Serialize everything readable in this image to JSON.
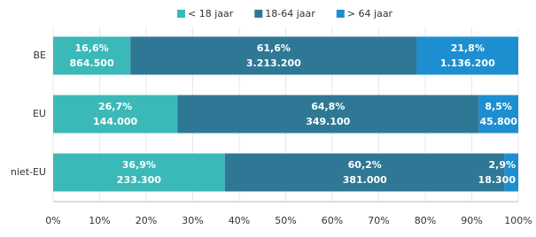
{
  "chart_data": {
    "type": "stacked-bar-horizontal",
    "categories": [
      "BE",
      "EU",
      "niet-EU"
    ],
    "series": [
      {
        "name": "< 18 jaar",
        "color": "#3bb9b9",
        "values": [
          16.6,
          26.7,
          36.9
        ],
        "value_labels": [
          "16,6%",
          "26,7%",
          "36,9%"
        ],
        "counts": [
          864500,
          144000,
          233300
        ],
        "count_labels": [
          "864.500",
          "144.000",
          "233.300"
        ]
      },
      {
        "name": "18-64 jaar",
        "color": "#2e7896",
        "values": [
          61.6,
          64.8,
          60.2
        ],
        "value_labels": [
          "61,6%",
          "64,8%",
          "60,2%"
        ],
        "counts": [
          3213200,
          349100,
          381000
        ],
        "count_labels": [
          "3.213.200",
          "349.100",
          "381.000"
        ]
      },
      {
        "name": "> 64 jaar",
        "color": "#1d8fd1",
        "values": [
          21.8,
          8.5,
          2.9
        ],
        "value_labels": [
          "21,8%",
          "8,5%",
          "2,9%"
        ],
        "counts": [
          1136200,
          45800,
          18300
        ],
        "count_labels": [
          "1.136.200",
          "45.800",
          "18.300"
        ]
      }
    ],
    "xlim": [
      0,
      100
    ],
    "xticks": [
      {
        "value": 0,
        "label": "0%"
      },
      {
        "value": 10,
        "label": "10%"
      },
      {
        "value": 20,
        "label": "20%"
      },
      {
        "value": 30,
        "label": "30%"
      },
      {
        "value": 40,
        "label": "40%"
      },
      {
        "value": 50,
        "label": "50%"
      },
      {
        "value": 60,
        "label": "60%"
      },
      {
        "value": 70,
        "label": "70%"
      },
      {
        "value": 80,
        "label": "80%"
      },
      {
        "value": 90,
        "label": "90%"
      },
      {
        "value": 100,
        "label": "100%"
      }
    ],
    "grid": true,
    "legend": "top"
  }
}
